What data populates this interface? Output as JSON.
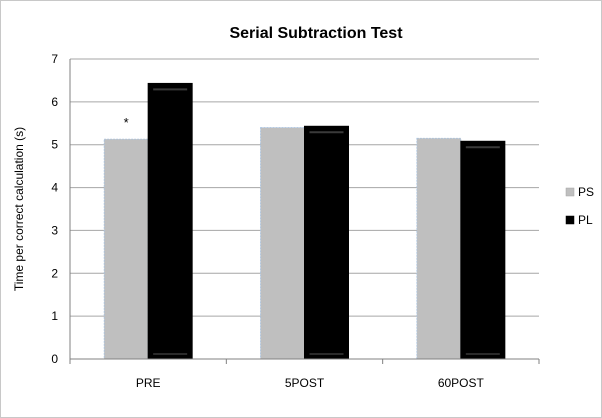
{
  "chart_data": {
    "type": "bar",
    "title": "Serial Subtraction Test",
    "xlabel": "",
    "ylabel": "Time per correct calculation (s)",
    "categories": [
      "PRE",
      "5POST",
      "60POST"
    ],
    "series": [
      {
        "name": "PS",
        "values": [
          5.13,
          5.4,
          5.15
        ],
        "color": "#bfbfbf"
      },
      {
        "name": "PL",
        "values": [
          6.43,
          5.43,
          5.08
        ],
        "color": "#000000"
      }
    ],
    "ylim": [
      0,
      7
    ],
    "yticks": [
      "0",
      "1",
      "2",
      "3",
      "4",
      "5",
      "6",
      "7"
    ],
    "grid": true,
    "legend_position": "right",
    "annotations": [
      {
        "text": "*",
        "category": "PRE",
        "series": "PS"
      }
    ]
  }
}
